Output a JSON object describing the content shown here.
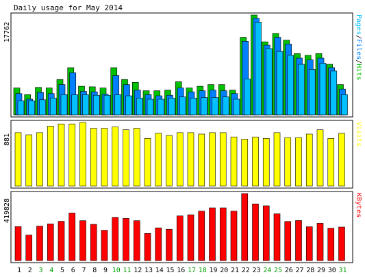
{
  "colors": {
    "background": "#ffffff",
    "frame": "#000000",
    "hits": "#00c000",
    "files": "#0080ff",
    "pages": "#00c0ff",
    "visits": "#ffff00",
    "kbytes": "#ff0000",
    "day_weekday": "#000000",
    "day_weekend": "#00a000"
  },
  "chart_data": {
    "type": "bar",
    "title": "Daily usage for May 2014",
    "categories": [
      "1",
      "2",
      "3",
      "4",
      "5",
      "6",
      "7",
      "8",
      "9",
      "10",
      "11",
      "12",
      "13",
      "14",
      "15",
      "16",
      "17",
      "18",
      "19",
      "20",
      "21",
      "22",
      "23",
      "24",
      "25",
      "26",
      "27",
      "28",
      "29",
      "30",
      "31"
    ],
    "weekend_days": [
      "3",
      "4",
      "10",
      "11",
      "17",
      "18",
      "24",
      "25",
      "31"
    ],
    "panels": [
      {
        "ymax_label": "17762",
        "ymax": 17762,
        "legend": [
          {
            "text": "Pages",
            "color": "#00c0ff"
          },
          {
            "text": "/",
            "color": "#000000"
          },
          {
            "text": "Files",
            "color": "#0080ff"
          },
          {
            "text": "/",
            "color": "#000000"
          },
          {
            "text": "Hits",
            "color": "#00c000"
          }
        ],
        "series": [
          {
            "name": "Hits",
            "color": "#00c000",
            "values": [
              4800,
              3600,
              4900,
              4800,
              6300,
              8400,
              5100,
              5000,
              4800,
              8400,
              6300,
              5800,
              4300,
              4300,
              4400,
              5900,
              4800,
              5100,
              5400,
              5400,
              4400,
              13800,
              17762,
              13000,
              14500,
              13300,
              10900,
              10600,
              10900,
              9000,
              5400
            ]
          },
          {
            "name": "Files",
            "color": "#0080ff",
            "values": [
              3800,
              2800,
              4000,
              3800,
              5400,
              7500,
              4200,
              4100,
              3700,
              7000,
              5400,
              4400,
              3600,
              3400,
              3500,
              4800,
              4100,
              4300,
              4400,
              4300,
              3800,
              13100,
              17200,
              12400,
              13800,
              12600,
              10100,
              9800,
              10100,
              8400,
              4600
            ]
          },
          {
            "name": "Pages",
            "color": "#00c0ff",
            "values": [
              2500,
              2500,
              2700,
              3000,
              3600,
              3600,
              3600,
              3500,
              3500,
              3600,
              3400,
              3000,
              2800,
              2800,
              3000,
              3200,
              3000,
              3100,
              3100,
              3200,
              2800,
              6400,
              16500,
              11800,
              11300,
              10600,
              9000,
              8100,
              9200,
              7800,
              3600
            ]
          }
        ]
      },
      {
        "ymax_label": "881",
        "ymax": 881,
        "legend": [
          {
            "text": "Visits",
            "color": "#ffff00"
          }
        ],
        "series": [
          {
            "name": "Visits",
            "color": "#ffff00",
            "values": [
              740,
              710,
              740,
              830,
              860,
              860,
              881,
              800,
              800,
              820,
              780,
              800,
              660,
              730,
              700,
              740,
              740,
              720,
              740,
              740,
              680,
              650,
              680,
              660,
              740,
              670,
              670,
              720,
              780,
              660,
              730
            ]
          }
        ]
      },
      {
        "ymax_label": "419828",
        "ymax": 419828,
        "legend": [
          {
            "text": "KBytes",
            "color": "#ff0000"
          }
        ],
        "series": [
          {
            "name": "KBytes",
            "color": "#ff0000",
            "values": [
              213000,
              160000,
              216000,
              230000,
              246000,
              298000,
              250000,
              227000,
              190000,
              271000,
              264000,
              250000,
              170000,
              205000,
              196000,
              280000,
              287000,
              310000,
              330000,
              330000,
              310000,
              419828,
              355000,
              343000,
              293000,
              245000,
              251000,
              212000,
              234000,
              203000,
              210000
            ]
          }
        ]
      }
    ]
  }
}
